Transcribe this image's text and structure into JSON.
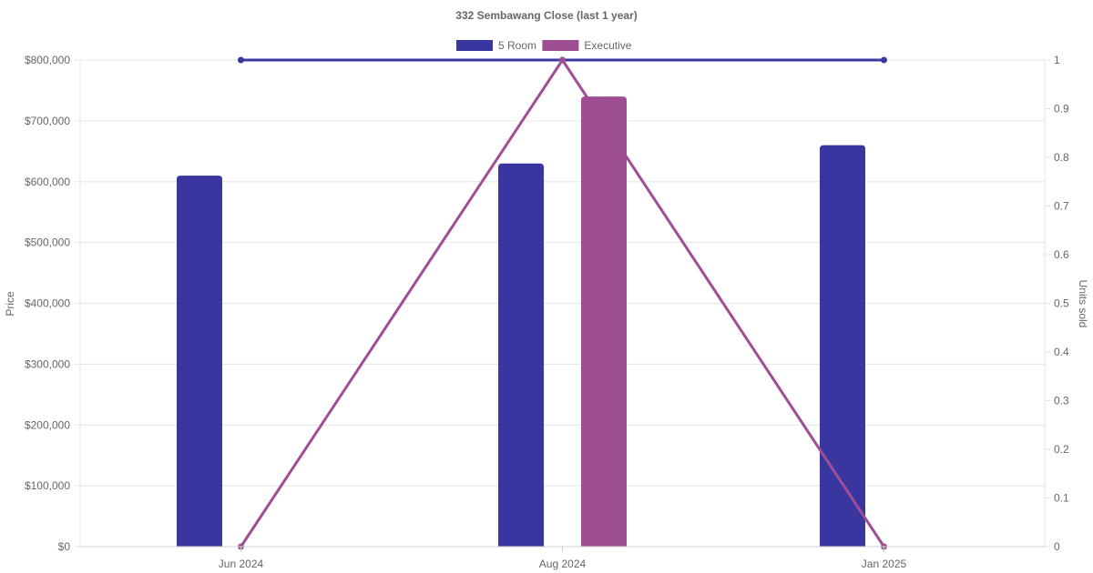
{
  "chart_data": {
    "type": "bar",
    "title": "332 Sembawang Close (last 1 year)",
    "categories": [
      "Jun 2024",
      "Aug 2024",
      "Jan 2025"
    ],
    "series": [
      {
        "name": "5 Room",
        "color": "#3a36a0",
        "bar_values": [
          610000,
          630000,
          660000
        ],
        "units_sold": [
          1,
          1,
          1
        ]
      },
      {
        "name": "Executive",
        "color": "#9e4f94",
        "bar_values": [
          null,
          740000,
          null
        ],
        "units_sold": [
          0,
          1,
          0
        ]
      }
    ],
    "y_left": {
      "label": "Price",
      "range": [
        0,
        800000
      ],
      "ticks": [
        "$0",
        "$100,000",
        "$200,000",
        "$300,000",
        "$400,000",
        "$500,000",
        "$600,000",
        "$700,000",
        "$800,000"
      ]
    },
    "y_right": {
      "label": "Units sold",
      "range": [
        0,
        1
      ],
      "ticks": [
        "0",
        "0.1",
        "0.2",
        "0.3",
        "0.4",
        "0.5",
        "0.6",
        "0.7",
        "0.8",
        "0.9",
        "1"
      ]
    },
    "grid": true,
    "legend_position": "top-center"
  }
}
